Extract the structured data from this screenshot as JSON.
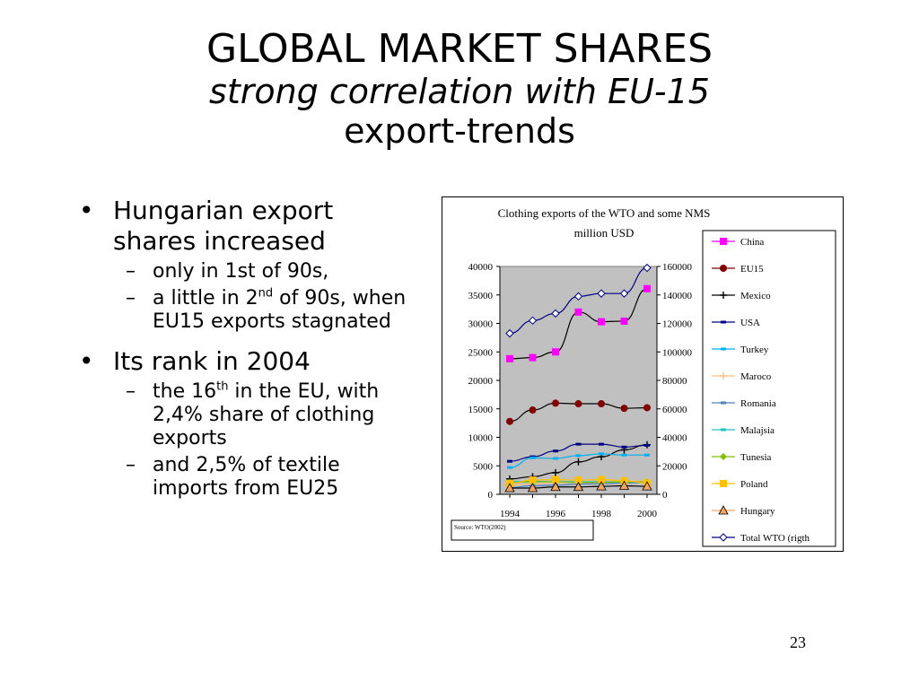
{
  "slide": {
    "title": "GLOBAL MARKET SHARES",
    "subtitle_line1": "strong correlation with EU-15",
    "subtitle_line2": "export-trends",
    "page_number": "23"
  },
  "bullets": {
    "b1": "Hungarian export shares increased",
    "b1_sub1": "only in 1st of 90s,",
    "b1_sub2_pre": "a little in 2",
    "b1_sub2_sup": "nd",
    "b1_sub2_post": " of 90s, when EU15 exports stagnated",
    "b2": "Its rank in 2004",
    "b2_sub1_pre": "the 16",
    "b2_sub1_sup": "th",
    "b2_sub1_post": " in the EU, with 2,4% share of clothing exports",
    "b2_sub2": "and 2,5% of textile imports from EU25",
    "bullet_char": "•",
    "dash_char": "–"
  },
  "chart_data": {
    "type": "line",
    "title": "Clothing exports of the WTO and some NMS",
    "subtitle": "million USD",
    "source_note": "Source: WTO(2002)",
    "x": [
      1994,
      1995,
      1996,
      1997,
      1998,
      1999,
      2000
    ],
    "x_tick_labels": [
      "1994",
      "1996",
      "1998",
      "2000"
    ],
    "y_left_ticks": [
      "0",
      "5000",
      "10000",
      "15000",
      "20000",
      "25000",
      "30000",
      "35000",
      "40000"
    ],
    "y_right_ticks": [
      "0",
      "20000",
      "40000",
      "60000",
      "80000",
      "100000",
      "120000",
      "140000",
      "160000"
    ],
    "ylim_left": [
      0,
      40000
    ],
    "ylim_right": [
      0,
      160000
    ],
    "plot_background": "#c0c0c0",
    "legend_position": "right",
    "series": [
      {
        "name": "China",
        "axis": "left",
        "color": "#ff00ff",
        "marker": "square",
        "values": [
          23800,
          24000,
          25000,
          32000,
          30300,
          30400,
          36100
        ]
      },
      {
        "name": "EU15",
        "axis": "left",
        "color": "#800000",
        "marker": "circle",
        "values": [
          12800,
          14800,
          16000,
          15900,
          15900,
          15100,
          15200
        ]
      },
      {
        "name": "Mexico",
        "axis": "left",
        "color": "#000000",
        "marker": "plus",
        "values": [
          2700,
          3100,
          3800,
          5700,
          6600,
          7800,
          8700
        ]
      },
      {
        "name": "USA",
        "axis": "left",
        "color": "#000080",
        "marker": "dash",
        "values": [
          5800,
          6600,
          7600,
          8800,
          8800,
          8300,
          8600
        ]
      },
      {
        "name": "Turkey",
        "axis": "left",
        "color": "#00b0f0",
        "marker": "dash",
        "values": [
          4700,
          6400,
          6300,
          6800,
          7100,
          6900,
          6900
        ]
      },
      {
        "name": "Maroco",
        "axis": "left",
        "color": "#ffc080",
        "marker": "plus",
        "values": [
          1600,
          1800,
          2000,
          2200,
          2300,
          2300,
          2400
        ]
      },
      {
        "name": "Romania",
        "axis": "left",
        "color": "#4f81bd",
        "marker": "dash",
        "values": [
          1200,
          1500,
          1600,
          1800,
          1900,
          2000,
          2100
        ]
      },
      {
        "name": "Malajsia",
        "axis": "left",
        "color": "#20c0c0",
        "marker": "dash",
        "values": [
          2200,
          2300,
          2200,
          2200,
          2200,
          2200,
          2200
        ]
      },
      {
        "name": "Tunesia",
        "axis": "left",
        "color": "#80c000",
        "marker": "diamond",
        "values": [
          2100,
          2200,
          2200,
          2100,
          2100,
          2200,
          2200
        ]
      },
      {
        "name": "Poland",
        "axis": "left",
        "color": "#ffc000",
        "marker": "square",
        "values": [
          1900,
          2500,
          2600,
          2500,
          2600,
          2400,
          2000
        ]
      },
      {
        "name": "Hungary",
        "axis": "left",
        "color": "#f4a460",
        "marker": "triangle",
        "values": [
          1100,
          1100,
          1300,
          1300,
          1400,
          1500,
          1400
        ]
      },
      {
        "name": "Total WTO (rigth",
        "axis": "right",
        "color": "#000080",
        "marker": "diamond-open",
        "values": [
          113000,
          122000,
          127000,
          139000,
          141000,
          141000,
          159000
        ]
      }
    ]
  }
}
